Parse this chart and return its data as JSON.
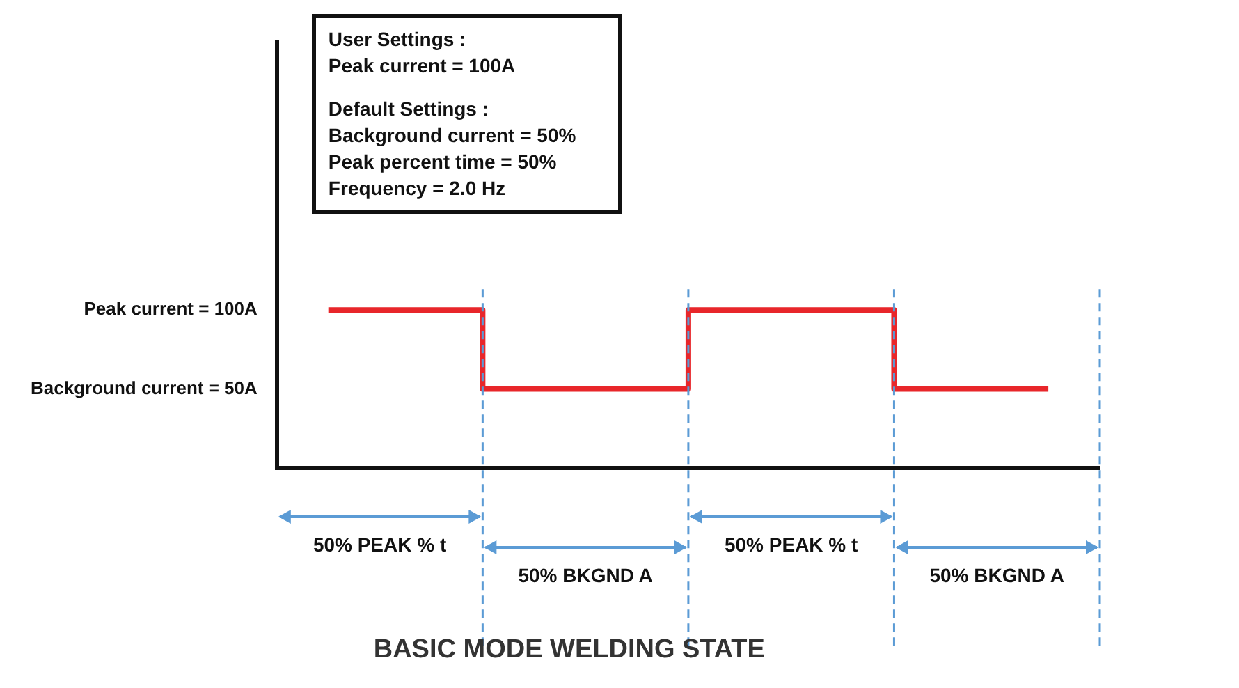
{
  "chart_data": {
    "type": "step",
    "title": "BASIC MODE WELDING STATE",
    "categories": [
      null,
      null,
      null,
      null,
      null,
      null,
      null,
      null
    ],
    "values": [
      100,
      100,
      50,
      50,
      100,
      100,
      50,
      50
    ],
    "color": "#e8262a",
    "ylim": [
      0,
      270
    ],
    "yticks": [
      {
        "value": 50,
        "label": "Background current = 50A"
      },
      {
        "value": 100,
        "label": "Peak current = 100A"
      }
    ],
    "tick_labels": "y",
    "grid": false,
    "legend": false,
    "marker": "none",
    "line_style": "solid",
    "annotations": [
      "User Settings :",
      "Peak current = 100A",
      "Default Settings :",
      "Background current = 50%",
      "Peak percent time = 50%",
      "Frequency = 2.0 Hz",
      "50% PEAK % t",
      "50% BKGND A",
      "50% PEAK % t",
      "50% BKGND A"
    ]
  }
}
